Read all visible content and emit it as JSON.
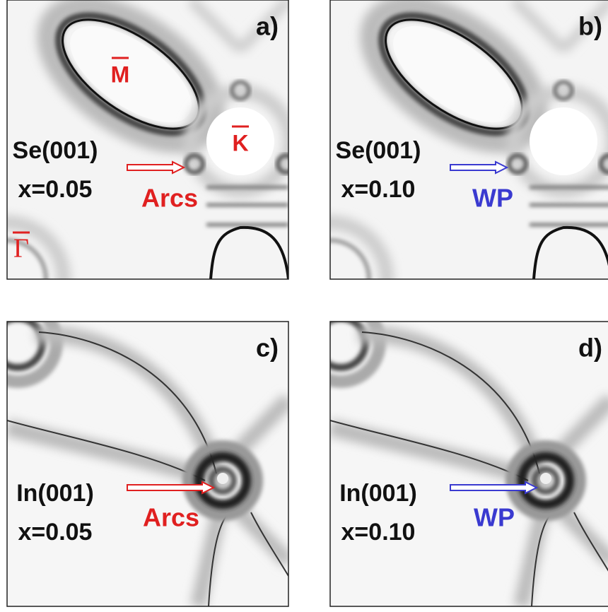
{
  "panels": [
    {
      "label": "a)",
      "surface": "Se(001)",
      "composition": "x=0.05",
      "annotation": "Arcs",
      "annotation_color": "#e02020",
      "style": "top",
      "symmetry_points": [
        "M",
        "K",
        "Γ"
      ]
    },
    {
      "label": "b)",
      "surface": "Se(001)",
      "composition": "x=0.10",
      "annotation": "WP",
      "annotation_color": "#3a3ad0",
      "style": "top"
    },
    {
      "label": "c)",
      "surface": "In(001)",
      "composition": "x=0.05",
      "annotation": "Arcs",
      "annotation_color": "#e02020",
      "style": "bottom"
    },
    {
      "label": "d)",
      "surface": "In(001)",
      "composition": "x=0.10",
      "annotation": "WP",
      "annotation_color": "#3a3ad0",
      "style": "bottom"
    }
  ]
}
